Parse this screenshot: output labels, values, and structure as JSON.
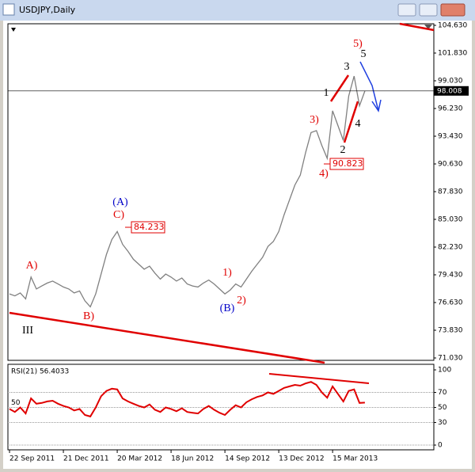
{
  "window": {
    "title": "USDJPY,Daily"
  },
  "chart_data": [
    {
      "type": "line",
      "color": "#808080",
      "values": [
        77.5,
        77.3,
        77.6,
        77.0,
        79.2,
        78.0,
        78.3,
        78.6,
        78.8,
        78.5,
        78.2,
        78.0,
        77.6,
        77.8,
        76.8,
        76.2,
        77.5,
        79.5,
        81.5,
        83.0,
        83.8,
        82.5,
        81.8,
        81.0,
        80.5,
        80.0,
        80.3,
        79.6,
        79.0,
        79.5,
        79.2,
        78.8,
        79.1,
        78.5,
        78.3,
        78.2,
        78.6,
        78.9,
        78.5,
        78.0,
        77.5,
        77.9,
        78.5,
        78.2,
        79.0,
        79.8,
        80.5,
        81.2,
        82.3,
        82.8,
        83.8,
        85.5,
        87.0,
        88.5,
        89.5,
        91.8,
        93.8,
        94.0,
        92.5,
        91.2,
        96.0,
        94.5,
        93.0,
        97.5,
        99.5,
        96.5,
        98.0
      ],
      "xlim": [
        -0.3,
        78.8
      ],
      "xticks": [
        {
          "value": 0,
          "label": "22 Sep 2011"
        },
        {
          "value": 10,
          "label": "21 Dec 2011"
        },
        {
          "value": 20,
          "label": "20 Mar 2012"
        },
        {
          "value": 30,
          "label": "18 Jun 2012"
        },
        {
          "value": 40,
          "label": "14 Sep 2012"
        },
        {
          "value": 50,
          "label": "13 Dec 2012"
        },
        {
          "value": 60,
          "label": "15 Mar 2013"
        }
      ],
      "ylim": [
        70.79,
        104.79
      ],
      "yticks": [
        {
          "value": 104.63,
          "label": "104.630"
        },
        {
          "value": 101.83,
          "label": "101.830"
        },
        {
          "value": 99.03,
          "label": "99.030"
        },
        {
          "value": 96.23,
          "label": "96.230"
        },
        {
          "value": 93.43,
          "label": "93.430"
        },
        {
          "value": 90.63,
          "label": "90.630"
        },
        {
          "value": 87.83,
          "label": "87.830"
        },
        {
          "value": 85.03,
          "label": "85.030"
        },
        {
          "value": 82.23,
          "label": "82.230"
        },
        {
          "value": 79.43,
          "label": "79.430"
        },
        {
          "value": 76.63,
          "label": "76.630"
        },
        {
          "value": 73.83,
          "label": "73.830"
        },
        {
          "value": 71.03,
          "label": "71.030"
        }
      ],
      "last_price": 98.008,
      "price_labels": [
        84.233,
        90.823
      ],
      "annotations": [
        {
          "text": "A)",
          "color": "#e00000"
        },
        {
          "text": "B)",
          "color": "#e00000"
        },
        {
          "text": "C)",
          "color": "#e00000"
        },
        {
          "text": "(A)",
          "color": "#0000c8"
        },
        {
          "text": "(B)",
          "color": "#0000c8"
        },
        {
          "text": "1)",
          "color": "#e00000"
        },
        {
          "text": "2)",
          "color": "#e00000"
        },
        {
          "text": "3)",
          "color": "#e00000"
        },
        {
          "text": "4)",
          "color": "#e00000"
        },
        {
          "text": "5)",
          "color": "#e00000"
        },
        {
          "text": "1",
          "color": "#000000"
        },
        {
          "text": "2",
          "color": "#000000"
        },
        {
          "text": "3",
          "color": "#000000"
        },
        {
          "text": "4",
          "color": "#000000"
        },
        {
          "text": "5",
          "color": "#000000"
        },
        {
          "text": "III",
          "color": "#000000"
        }
      ]
    },
    {
      "type": "line",
      "title": "RSI(21) 56.4033",
      "color": "#e00000",
      "values": [
        48,
        44,
        50,
        42,
        62,
        55,
        56,
        58,
        59,
        55,
        52,
        50,
        46,
        48,
        40,
        38,
        50,
        65,
        72,
        75,
        74,
        62,
        58,
        55,
        52,
        50,
        54,
        47,
        44,
        50,
        48,
        45,
        49,
        44,
        43,
        42,
        48,
        52,
        47,
        43,
        40,
        47,
        53,
        50,
        57,
        61,
        64,
        66,
        70,
        68,
        72,
        76,
        78,
        80,
        79,
        82,
        84,
        80,
        70,
        63,
        78,
        68,
        58,
        72,
        74,
        56,
        56.4033
      ],
      "ylim": [
        -6.3,
        107.4
      ],
      "yticks": [
        100,
        70,
        50,
        30,
        0
      ],
      "grid": true
    }
  ]
}
